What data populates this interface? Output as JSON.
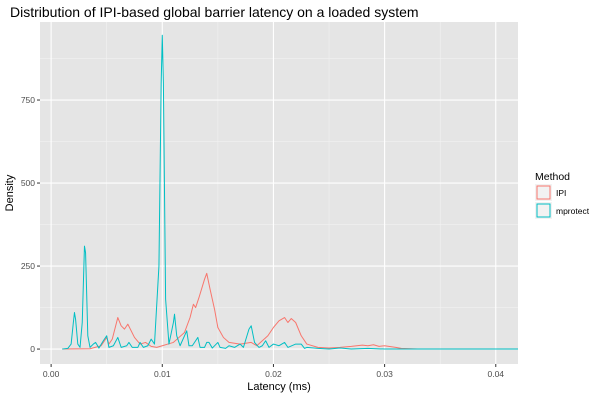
{
  "chart_data": {
    "type": "line",
    "title": "Distribution of IPI-based global barrier latency on a loaded system",
    "xlabel": "Latency (ms)",
    "ylabel": "Density",
    "xlim": [
      -0.001,
      0.042
    ],
    "ylim": [
      -45,
      985
    ],
    "x_ticks": [
      0.0,
      0.01,
      0.02,
      0.03,
      0.04
    ],
    "x_tick_labels": [
      "0.00",
      "0.01",
      "0.02",
      "0.03",
      "0.04"
    ],
    "y_ticks": [
      0,
      250,
      500,
      750
    ],
    "y_tick_labels": [
      "0",
      "250",
      "500",
      "750"
    ],
    "grid": true,
    "panel_background": "#e5e5e5",
    "legend": {
      "title": "Method",
      "position": "right"
    },
    "series": [
      {
        "name": "IPI",
        "color": "#f8766d",
        "points": [
          [
            0.001,
            0
          ],
          [
            0.0035,
            1
          ],
          [
            0.0045,
            10
          ],
          [
            0.005,
            35
          ],
          [
            0.0052,
            15
          ],
          [
            0.0055,
            30
          ],
          [
            0.006,
            95
          ],
          [
            0.0063,
            70
          ],
          [
            0.0066,
            60
          ],
          [
            0.0069,
            75
          ],
          [
            0.0075,
            35
          ],
          [
            0.008,
            15
          ],
          [
            0.0085,
            20
          ],
          [
            0.009,
            8
          ],
          [
            0.0095,
            5
          ],
          [
            0.01,
            10
          ],
          [
            0.0105,
            15
          ],
          [
            0.011,
            20
          ],
          [
            0.0115,
            35
          ],
          [
            0.012,
            50
          ],
          [
            0.0125,
            95
          ],
          [
            0.0128,
            135
          ],
          [
            0.013,
            125
          ],
          [
            0.0133,
            155
          ],
          [
            0.0138,
            210
          ],
          [
            0.014,
            228
          ],
          [
            0.0143,
            180
          ],
          [
            0.0147,
            120
          ],
          [
            0.015,
            65
          ],
          [
            0.0155,
            35
          ],
          [
            0.016,
            20
          ],
          [
            0.017,
            15
          ],
          [
            0.018,
            20
          ],
          [
            0.0185,
            10
          ],
          [
            0.019,
            25
          ],
          [
            0.0195,
            40
          ],
          [
            0.02,
            65
          ],
          [
            0.0205,
            85
          ],
          [
            0.021,
            95
          ],
          [
            0.0213,
            80
          ],
          [
            0.0216,
            92
          ],
          [
            0.022,
            80
          ],
          [
            0.0225,
            40
          ],
          [
            0.023,
            15
          ],
          [
            0.024,
            5
          ],
          [
            0.025,
            3
          ],
          [
            0.026,
            5
          ],
          [
            0.027,
            8
          ],
          [
            0.0275,
            10
          ],
          [
            0.028,
            12
          ],
          [
            0.0285,
            10
          ],
          [
            0.029,
            13
          ],
          [
            0.0295,
            8
          ],
          [
            0.03,
            10
          ],
          [
            0.031,
            5
          ],
          [
            0.0315,
            2
          ],
          [
            0.033,
            0
          ],
          [
            0.042,
            0
          ]
        ]
      },
      {
        "name": "mprotect",
        "color": "#00bfc4",
        "points": [
          [
            0.001,
            0
          ],
          [
            0.0015,
            2
          ],
          [
            0.0018,
            15
          ],
          [
            0.002,
            80
          ],
          [
            0.0021,
            110
          ],
          [
            0.0022,
            90
          ],
          [
            0.0024,
            15
          ],
          [
            0.0026,
            5
          ],
          [
            0.0028,
            80
          ],
          [
            0.003,
            310
          ],
          [
            0.0031,
            290
          ],
          [
            0.0033,
            40
          ],
          [
            0.0035,
            5
          ],
          [
            0.0038,
            15
          ],
          [
            0.004,
            20
          ],
          [
            0.0043,
            3
          ],
          [
            0.0047,
            25
          ],
          [
            0.005,
            40
          ],
          [
            0.0052,
            5
          ],
          [
            0.0056,
            10
          ],
          [
            0.006,
            35
          ],
          [
            0.0063,
            5
          ],
          [
            0.0068,
            10
          ],
          [
            0.007,
            20
          ],
          [
            0.0073,
            5
          ],
          [
            0.0078,
            5
          ],
          [
            0.008,
            20
          ],
          [
            0.0083,
            5
          ],
          [
            0.0087,
            10
          ],
          [
            0.009,
            30
          ],
          [
            0.0093,
            15
          ],
          [
            0.0097,
            250
          ],
          [
            0.0099,
            800
          ],
          [
            0.01,
            945
          ],
          [
            0.0101,
            800
          ],
          [
            0.0103,
            150
          ],
          [
            0.0106,
            15
          ],
          [
            0.011,
            80
          ],
          [
            0.0111,
            105
          ],
          [
            0.0113,
            40
          ],
          [
            0.0116,
            10
          ],
          [
            0.012,
            40
          ],
          [
            0.0122,
            55
          ],
          [
            0.0124,
            10
          ],
          [
            0.0127,
            10
          ],
          [
            0.013,
            25
          ],
          [
            0.0132,
            35
          ],
          [
            0.0134,
            5
          ],
          [
            0.0138,
            5
          ],
          [
            0.014,
            20
          ],
          [
            0.0142,
            20
          ],
          [
            0.0145,
            3
          ],
          [
            0.015,
            20
          ],
          [
            0.0152,
            5
          ],
          [
            0.0157,
            2
          ],
          [
            0.016,
            10
          ],
          [
            0.0165,
            5
          ],
          [
            0.017,
            15
          ],
          [
            0.0173,
            5
          ],
          [
            0.0178,
            60
          ],
          [
            0.018,
            70
          ],
          [
            0.0183,
            20
          ],
          [
            0.0187,
            5
          ],
          [
            0.019,
            10
          ],
          [
            0.0193,
            25
          ],
          [
            0.0196,
            5
          ],
          [
            0.02,
            15
          ],
          [
            0.0205,
            10
          ],
          [
            0.021,
            20
          ],
          [
            0.0213,
            5
          ],
          [
            0.022,
            15
          ],
          [
            0.0225,
            15
          ],
          [
            0.0228,
            2
          ],
          [
            0.023,
            5
          ],
          [
            0.024,
            2
          ],
          [
            0.025,
            0
          ],
          [
            0.026,
            3
          ],
          [
            0.027,
            0
          ],
          [
            0.0285,
            2
          ],
          [
            0.03,
            0
          ],
          [
            0.042,
            0
          ]
        ]
      }
    ]
  }
}
